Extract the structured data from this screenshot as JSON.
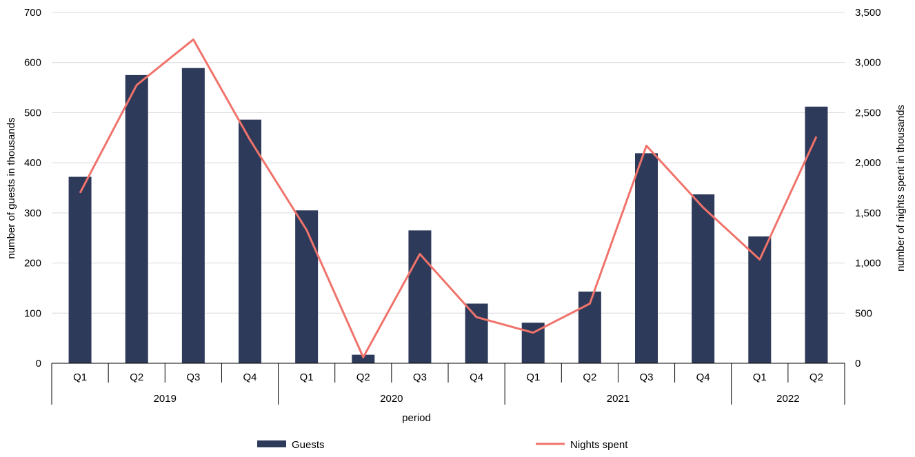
{
  "chart_data": {
    "type": "bar",
    "categories": [
      "Q1",
      "Q2",
      "Q3",
      "Q4",
      "Q1",
      "Q2",
      "Q3",
      "Q4",
      "Q1",
      "Q2",
      "Q3",
      "Q4",
      "Q1",
      "Q2"
    ],
    "groups": [
      {
        "label": "2019",
        "count": 4
      },
      {
        "label": "2020",
        "count": 4
      },
      {
        "label": "2021",
        "count": 4
      },
      {
        "label": "2022",
        "count": 2
      }
    ],
    "series": [
      {
        "name": "Guests",
        "type": "bar",
        "axis": "left",
        "color": "#2e3a59",
        "values": [
          372,
          575,
          589,
          486,
          305,
          17,
          265,
          119,
          81,
          143,
          419,
          337,
          253,
          512
        ]
      },
      {
        "name": "Nights spent",
        "type": "line",
        "axis": "right",
        "color": "#f0736b",
        "values": [
          1700,
          2775,
          3230,
          2230,
          1330,
          60,
          1090,
          460,
          305,
          595,
          2170,
          1555,
          1035,
          2260
        ]
      }
    ],
    "xlabel": "period",
    "ylabel": "number of guests in thousands",
    "y2label": "number of nights spent in thousands",
    "ylim": [
      0,
      700
    ],
    "y2lim": [
      0,
      3500
    ],
    "yticks": [
      "0",
      "100",
      "200",
      "300",
      "400",
      "500",
      "600",
      "700"
    ],
    "y2ticks": [
      "0",
      "500",
      "1,000",
      "1,500",
      "2,000",
      "2,500",
      "3,000",
      "3,500"
    ],
    "grid": true,
    "legend_position": "bottom"
  }
}
